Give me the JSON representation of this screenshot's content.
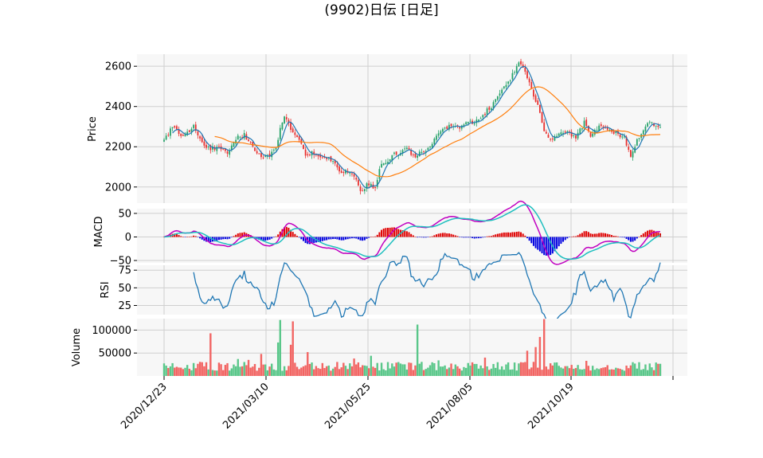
{
  "title": "(9902)日伝  [日足]",
  "colors": {
    "up": "#26a269",
    "down": "#e8302f",
    "upBar": "#5ac78a",
    "downBar": "#f26563",
    "ma_short": "#1f77b4",
    "ma_long": "#ff7f0e",
    "macd": "#c000c0",
    "signal": "#1fbfbf",
    "hist_pos": "#e00000",
    "hist_neg": "#0000e0",
    "rsi": "#1f77b4",
    "grid": "#cfcfcf",
    "panel_bg": "#f7f7f7"
  },
  "chart_data": [
    {
      "type": "candlestick",
      "ylabel": "Price",
      "ylim": [
        1920,
        2660
      ],
      "yticks": [
        2000,
        2200,
        2400,
        2600
      ],
      "x_dates": [
        "2020/12/23",
        "2021/03/10",
        "2021/05/25",
        "2021/08/05",
        "2021/10/19"
      ],
      "close_anchors": [
        [
          0,
          2240
        ],
        [
          4,
          2300
        ],
        [
          8,
          2250
        ],
        [
          14,
          2300
        ],
        [
          18,
          2220
        ],
        [
          22,
          2190
        ],
        [
          26,
          2200
        ],
        [
          30,
          2160
        ],
        [
          34,
          2240
        ],
        [
          38,
          2260
        ],
        [
          42,
          2200
        ],
        [
          46,
          2150
        ],
        [
          50,
          2150
        ],
        [
          53,
          2200
        ],
        [
          55,
          2290
        ],
        [
          57,
          2360
        ],
        [
          59,
          2310
        ],
        [
          61,
          2270
        ],
        [
          64,
          2240
        ],
        [
          67,
          2160
        ],
        [
          70,
          2170
        ],
        [
          73,
          2150
        ],
        [
          76,
          2150
        ],
        [
          80,
          2130
        ],
        [
          84,
          2060
        ],
        [
          86,
          2090
        ],
        [
          90,
          2050
        ],
        [
          93,
          1980
        ],
        [
          96,
          2010
        ],
        [
          100,
          2000
        ],
        [
          103,
          2120
        ],
        [
          106,
          2130
        ],
        [
          109,
          2160
        ],
        [
          112,
          2170
        ],
        [
          115,
          2190
        ],
        [
          118,
          2150
        ],
        [
          121,
          2170
        ],
        [
          124,
          2170
        ],
        [
          127,
          2220
        ],
        [
          130,
          2260
        ],
        [
          133,
          2290
        ],
        [
          136,
          2310
        ],
        [
          140,
          2300
        ],
        [
          143,
          2320
        ],
        [
          147,
          2320
        ],
        [
          151,
          2360
        ],
        [
          155,
          2400
        ],
        [
          159,
          2470
        ],
        [
          163,
          2520
        ],
        [
          166,
          2580
        ],
        [
          168,
          2620
        ],
        [
          171,
          2570
        ],
        [
          174,
          2480
        ],
        [
          177,
          2400
        ],
        [
          180,
          2280
        ],
        [
          183,
          2240
        ],
        [
          187,
          2270
        ],
        [
          191,
          2280
        ],
        [
          195,
          2240
        ],
        [
          199,
          2320
        ],
        [
          202,
          2260
        ],
        [
          206,
          2300
        ],
        [
          210,
          2290
        ],
        [
          214,
          2270
        ],
        [
          218,
          2240
        ],
        [
          221,
          2160
        ],
        [
          224,
          2230
        ],
        [
          227,
          2290
        ],
        [
          230,
          2320
        ],
        [
          233,
          2300
        ],
        [
          235,
          2300
        ]
      ],
      "ma_short_window": 5,
      "ma_long_window": 25
    },
    {
      "type": "macd",
      "ylabel": "MACD",
      "ylim": [
        -55,
        60
      ],
      "yticks": [
        -50,
        0,
        50
      ]
    },
    {
      "type": "line",
      "ylabel": "RSI",
      "ylim": [
        12,
        82
      ],
      "yticks": [
        25,
        50,
        75
      ],
      "rsi_window": 14
    },
    {
      "type": "bar",
      "ylabel": "Volume",
      "ylim": [
        0,
        125000
      ],
      "yticks": [
        50000,
        100000
      ],
      "volume_base": 22000,
      "volume_spikes": [
        [
          22,
          93000
        ],
        [
          54,
          73000
        ],
        [
          55,
          122000
        ],
        [
          61,
          119000
        ],
        [
          60,
          68000
        ],
        [
          120,
          112000
        ],
        [
          180,
          124000
        ],
        [
          178,
          85000
        ],
        [
          176,
          63000
        ],
        [
          46,
          48000
        ],
        [
          68,
          52000
        ],
        [
          98,
          44000
        ],
        [
          130,
          34000
        ],
        [
          172,
          55000
        ],
        [
          152,
          40000
        ],
        [
          200,
          33000
        ],
        [
          222,
          30000
        ],
        [
          90,
          38000
        ],
        [
          35,
          37000
        ],
        [
          40,
          35000
        ]
      ]
    }
  ]
}
